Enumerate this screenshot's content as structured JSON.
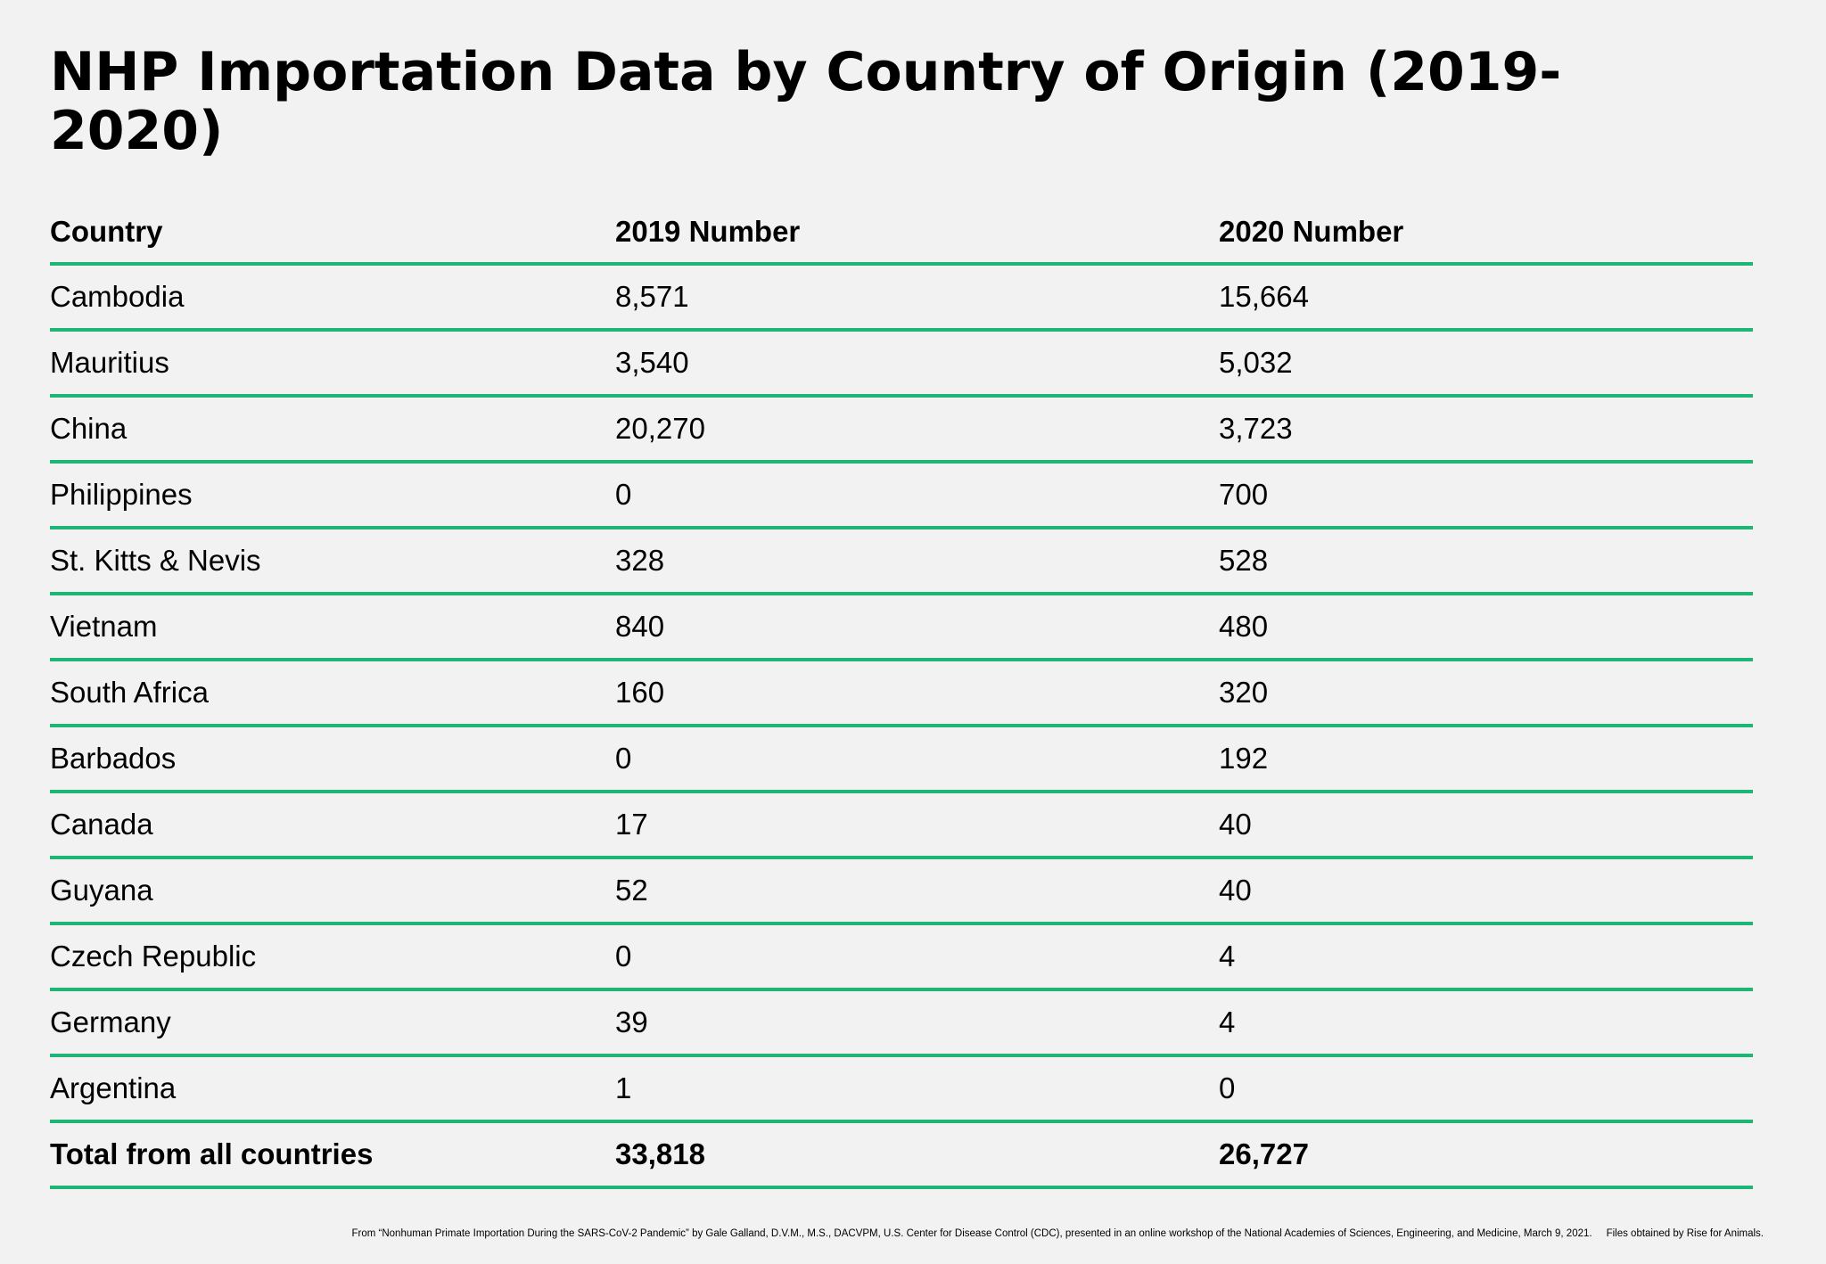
{
  "header": {
    "title": "NHP Importation Data by Country of Origin (2019-2020)"
  },
  "table": {
    "columns": [
      "Country",
      "2019 Number",
      "2020 Number"
    ],
    "rows": [
      [
        "Cambodia",
        "8,571",
        "15,664"
      ],
      [
        "Mauritius",
        "3,540",
        "5,032"
      ],
      [
        "China",
        "20,270",
        "3,723"
      ],
      [
        "Philippines",
        "0",
        "700"
      ],
      [
        "St. Kitts & Nevis",
        "328",
        "528"
      ],
      [
        "Vietnam",
        "840",
        "480"
      ],
      [
        "South Africa",
        "160",
        "320"
      ],
      [
        "Barbados",
        "0",
        "192"
      ],
      [
        "Canada",
        "17",
        "40"
      ],
      [
        "Guyana",
        "52",
        "40"
      ],
      [
        "Czech Republic",
        "0",
        "4"
      ],
      [
        "Germany",
        "39",
        "4"
      ],
      [
        "Argentina",
        "1",
        "0"
      ]
    ],
    "total": [
      "Total from all countries",
      "33,818",
      "26,727"
    ]
  },
  "footer": {
    "source": "From “Nonhuman Primate Importation During the SARS-CoV-2 Pandemic” by Gale Galland, D.V.M., M.S., DACVPM, U.S. Center for Disease Control (CDC), presented in an online workshop of the National Academies of Sciences, Engineering, and Medicine, March 9, 2021.",
    "credit": "Files obtained by Rise for Animals."
  }
}
